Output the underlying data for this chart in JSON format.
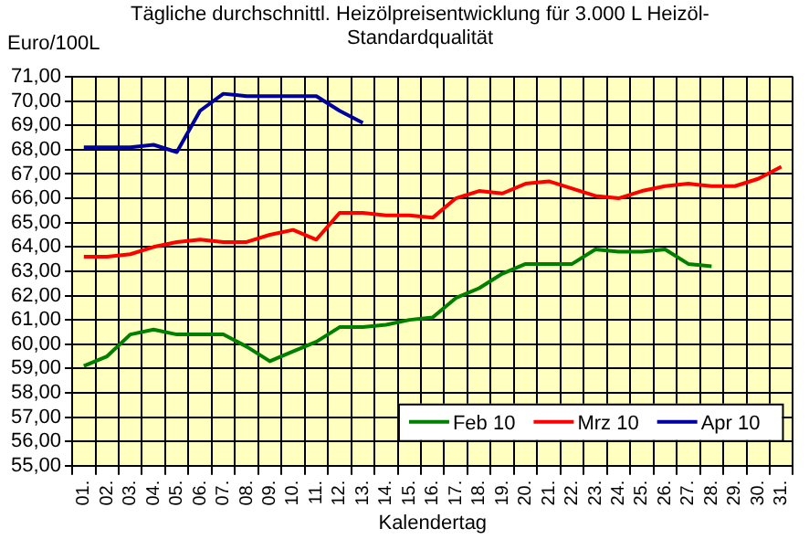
{
  "chart_data": {
    "type": "line",
    "title": "Tägliche durchschnittl. Heizölpreisentwicklung für 3.000 L Heizöl-Standardqualität",
    "ylabel": "Euro/100L",
    "xlabel": "Kalendertag",
    "categories": [
      "01.",
      "02.",
      "03.",
      "04.",
      "05.",
      "06.",
      "07.",
      "08.",
      "09.",
      "10.",
      "11.",
      "12.",
      "13.",
      "14.",
      "15.",
      "16.",
      "17.",
      "18.",
      "19.",
      "20.",
      "21.",
      "22.",
      "23.",
      "24.",
      "25.",
      "26.",
      "27.",
      "28.",
      "29.",
      "30.",
      "31."
    ],
    "series": [
      {
        "name": "Feb 10",
        "color": "#008000",
        "values": [
          59.1,
          59.5,
          60.4,
          60.6,
          60.4,
          60.4,
          60.4,
          59.9,
          59.3,
          59.7,
          60.1,
          60.7,
          60.7,
          60.8,
          61.0,
          61.1,
          61.9,
          62.3,
          62.9,
          63.3,
          63.3,
          63.3,
          63.9,
          63.8,
          63.8,
          63.9,
          63.3,
          63.2,
          null,
          null,
          null
        ]
      },
      {
        "name": "Mrz 10",
        "color": "#ff0000",
        "values": [
          63.6,
          63.6,
          63.7,
          64.0,
          64.2,
          64.3,
          64.2,
          64.2,
          64.5,
          64.7,
          64.3,
          65.4,
          65.4,
          65.3,
          65.3,
          65.2,
          66.0,
          66.3,
          66.2,
          66.6,
          66.7,
          66.4,
          66.1,
          66.0,
          66.3,
          66.5,
          66.6,
          66.5,
          66.5,
          66.8,
          67.3
        ]
      },
      {
        "name": "Apr 10",
        "color": "#0000a0",
        "values": [
          68.1,
          68.1,
          68.1,
          68.2,
          67.9,
          69.6,
          70.3,
          70.2,
          70.2,
          70.2,
          70.2,
          69.6,
          69.1,
          null,
          null,
          null,
          null,
          null,
          null,
          null,
          null,
          null,
          null,
          null,
          null,
          null,
          null,
          null,
          null,
          null,
          null
        ]
      }
    ],
    "ylim": [
      55,
      71
    ],
    "yticks": [
      {
        "value": 55,
        "label": "55,00"
      },
      {
        "value": 56,
        "label": "56,00"
      },
      {
        "value": 57,
        "label": "57,00"
      },
      {
        "value": 58,
        "label": "58,00"
      },
      {
        "value": 59,
        "label": "59,00"
      },
      {
        "value": 60,
        "label": "60,00"
      },
      {
        "value": 61,
        "label": "61,00"
      },
      {
        "value": 62,
        "label": "62,00"
      },
      {
        "value": 63,
        "label": "63,00"
      },
      {
        "value": 64,
        "label": "64,00"
      },
      {
        "value": 65,
        "label": "65,00"
      },
      {
        "value": 66,
        "label": "66,00"
      },
      {
        "value": 67,
        "label": "67,00"
      },
      {
        "value": 68,
        "label": "68,00"
      },
      {
        "value": 69,
        "label": "69,00"
      },
      {
        "value": 70,
        "label": "70,00"
      },
      {
        "value": 71,
        "label": "71,00"
      }
    ],
    "grid": true,
    "legend": "bottom right",
    "marker": "none",
    "line_style": "solid"
  }
}
